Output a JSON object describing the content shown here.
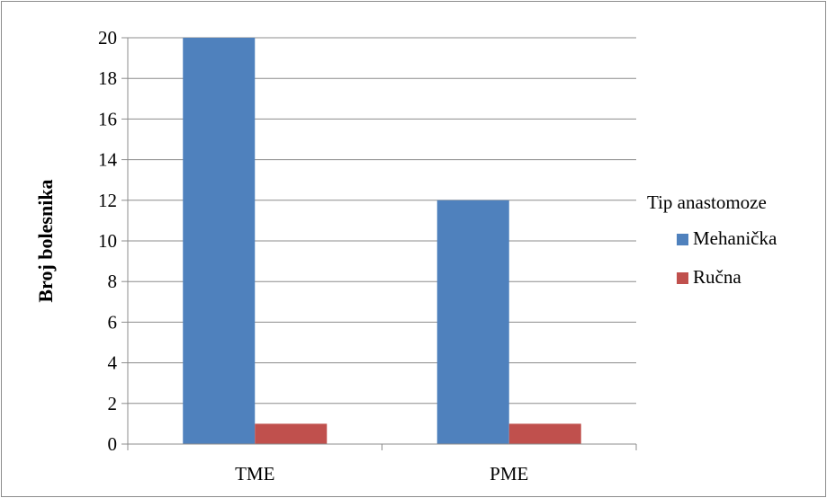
{
  "chart_data": {
    "type": "bar",
    "title": "",
    "xlabel": "",
    "ylabel": "Broj bolesnika",
    "ylim": [
      0,
      20
    ],
    "yticks": [
      0,
      2,
      4,
      6,
      8,
      10,
      12,
      14,
      16,
      18,
      20
    ],
    "categories": [
      "TME",
      "PME"
    ],
    "series": [
      {
        "name": "Mehanička",
        "values": [
          20,
          12
        ],
        "color": "#4f81bd"
      },
      {
        "name": "Ručna",
        "values": [
          1,
          1
        ],
        "color": "#c0504d"
      }
    ],
    "legend": {
      "title": "Tip anastomoze",
      "placement": "right"
    },
    "grid": true
  }
}
